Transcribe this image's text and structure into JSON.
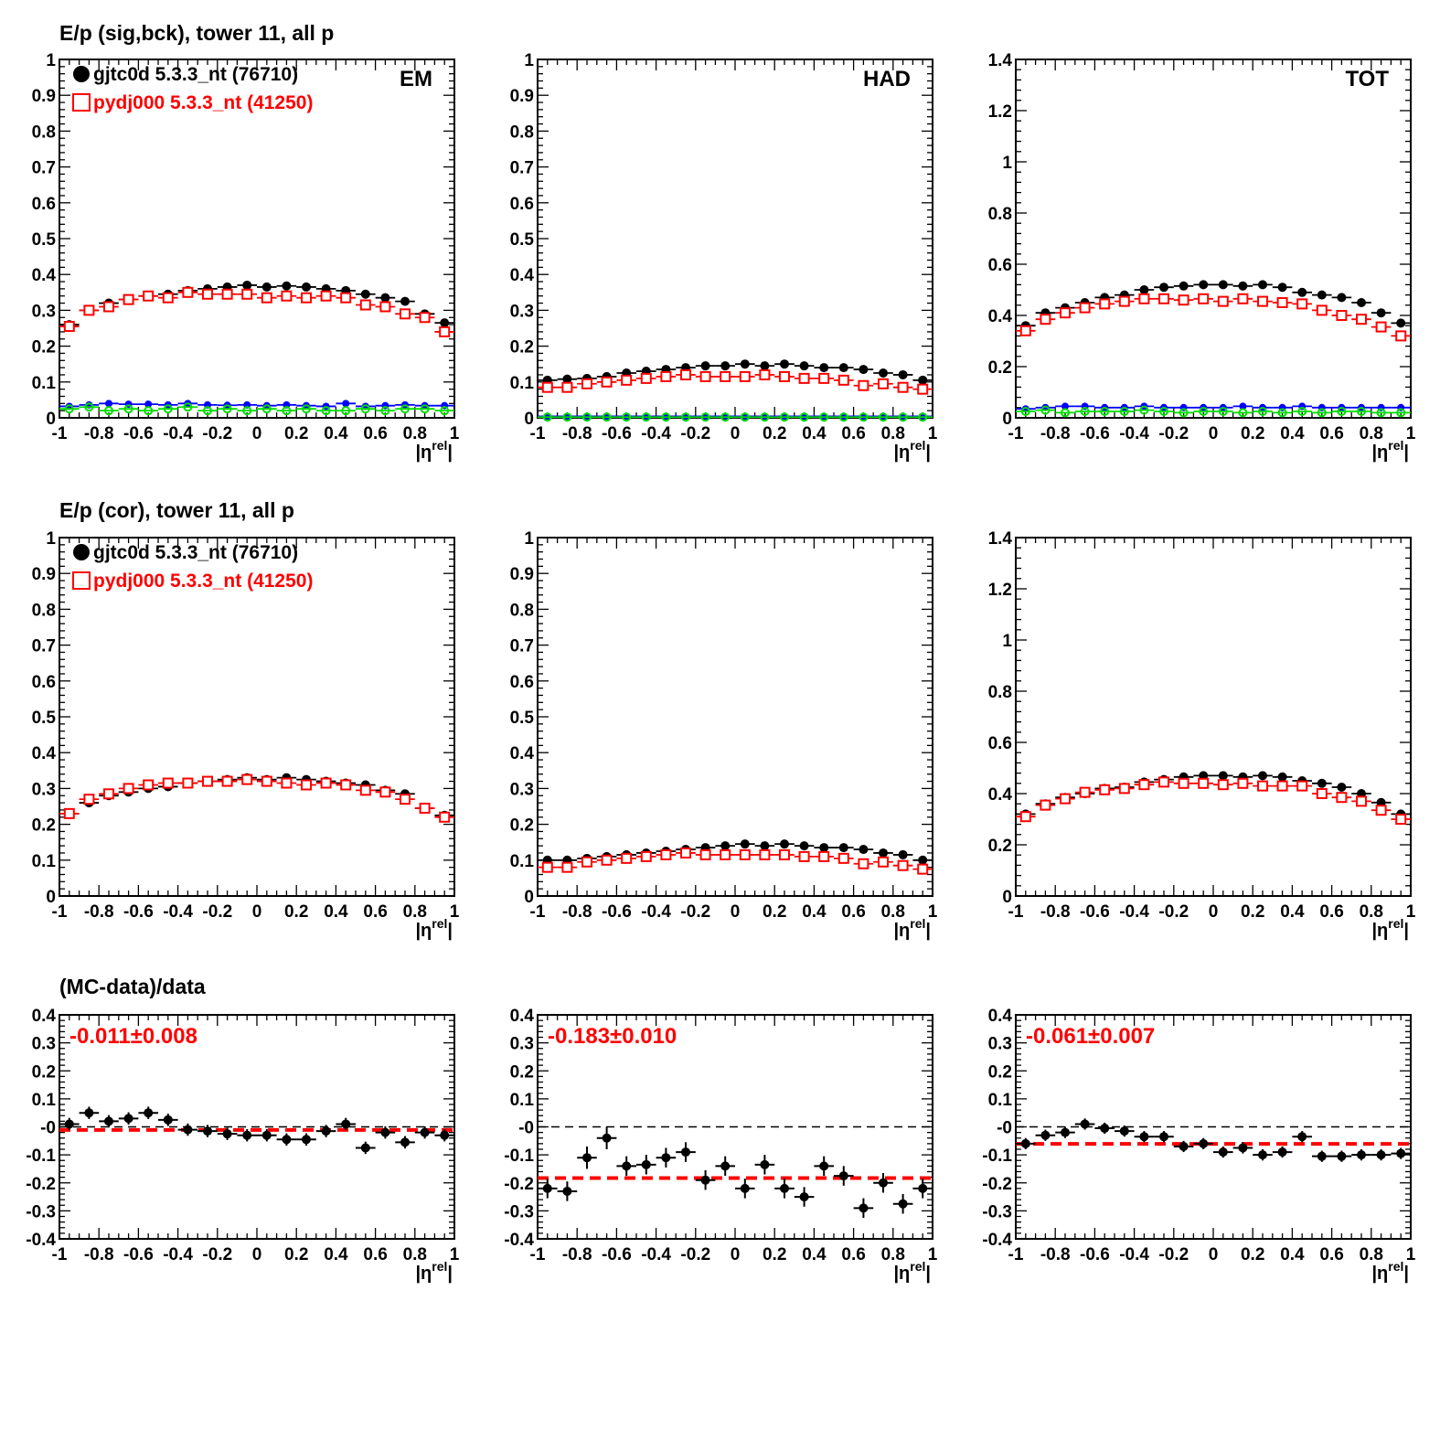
{
  "figure": {
    "row_titles": [
      "E/p (sig,bck), tower 11, all p",
      "E/p (cor), tower 11, all p",
      "(MC-data)/data"
    ],
    "x_axis_label": "|ηrel|",
    "x_tick_labels": [
      "-1",
      "-0.8",
      "-0.6",
      "-0.4",
      "-0.2",
      "0",
      "0.2",
      "0.4",
      "0.6",
      "0.8",
      "1"
    ],
    "legend": {
      "data": "gjtc0d 5.3.3_nt (76710)",
      "mc": "pydj000 5.3.3_nt (41250)"
    },
    "colors": {
      "data": "#000000",
      "mc": "#ff0000",
      "bck_data": "#0000ff",
      "bck_mc": "#00dd00",
      "fit_line": "#ff0000",
      "zero_line": "#000000"
    }
  },
  "chart_data": [
    {
      "id": "em_sigbck",
      "type": "scatter",
      "panel_label": "EM",
      "xlim": [
        -1,
        1
      ],
      "ylim": [
        0,
        1
      ],
      "yticks": [
        "0",
        "0.1",
        "0.2",
        "0.3",
        "0.4",
        "0.5",
        "0.6",
        "0.7",
        "0.8",
        "0.9",
        "1"
      ],
      "x": [
        -0.95,
        -0.85,
        -0.75,
        -0.65,
        -0.55,
        -0.45,
        -0.35,
        -0.25,
        -0.15,
        -0.05,
        0.05,
        0.15,
        0.25,
        0.35,
        0.45,
        0.55,
        0.65,
        0.75,
        0.85,
        0.95
      ],
      "series": [
        {
          "name": "gjtc0d 5.3.3_nt (76710)",
          "role": "data",
          "values": [
            0.26,
            0.3,
            0.32,
            0.33,
            0.34,
            0.345,
            0.355,
            0.36,
            0.365,
            0.37,
            0.365,
            0.368,
            0.365,
            0.36,
            0.355,
            0.345,
            0.335,
            0.325,
            0.29,
            0.265
          ]
        },
        {
          "name": "pydj000 5.3.3_nt (41250)",
          "role": "mc",
          "values": [
            0.255,
            0.3,
            0.31,
            0.33,
            0.34,
            0.335,
            0.35,
            0.345,
            0.345,
            0.345,
            0.335,
            0.34,
            0.335,
            0.34,
            0.335,
            0.315,
            0.31,
            0.29,
            0.28,
            0.24
          ]
        },
        {
          "role": "bck_data",
          "values": [
            0.032,
            0.036,
            0.04,
            0.038,
            0.038,
            0.036,
            0.04,
            0.036,
            0.035,
            0.036,
            0.034,
            0.036,
            0.034,
            0.032,
            0.04,
            0.032,
            0.034,
            0.036,
            0.034,
            0.034
          ]
        },
        {
          "role": "bck_mc",
          "values": [
            0.025,
            0.03,
            0.02,
            0.025,
            0.02,
            0.025,
            0.03,
            0.02,
            0.025,
            0.02,
            0.025,
            0.02,
            0.025,
            0.02,
            0.02,
            0.025,
            0.02,
            0.025,
            0.025,
            0.02
          ]
        }
      ]
    },
    {
      "id": "had_sigbck",
      "type": "scatter",
      "panel_label": "HAD",
      "xlim": [
        -1,
        1
      ],
      "ylim": [
        0,
        1
      ],
      "yticks": [
        "0",
        "0.1",
        "0.2",
        "0.3",
        "0.4",
        "0.5",
        "0.6",
        "0.7",
        "0.8",
        "0.9",
        "1"
      ],
      "x": [
        -0.95,
        -0.85,
        -0.75,
        -0.65,
        -0.55,
        -0.45,
        -0.35,
        -0.25,
        -0.15,
        -0.05,
        0.05,
        0.15,
        0.25,
        0.35,
        0.45,
        0.55,
        0.65,
        0.75,
        0.85,
        0.95
      ],
      "series": [
        {
          "name": "gjtc0d 5.3.3_nt (76710)",
          "role": "data",
          "values": [
            0.105,
            0.108,
            0.11,
            0.115,
            0.125,
            0.13,
            0.135,
            0.14,
            0.145,
            0.145,
            0.15,
            0.145,
            0.15,
            0.145,
            0.14,
            0.14,
            0.135,
            0.125,
            0.12,
            0.105
          ]
        },
        {
          "name": "pydj000 5.3.3_nt (41250)",
          "role": "mc",
          "values": [
            0.085,
            0.085,
            0.095,
            0.1,
            0.105,
            0.11,
            0.115,
            0.12,
            0.115,
            0.115,
            0.115,
            0.12,
            0.115,
            0.11,
            0.11,
            0.105,
            0.09,
            0.095,
            0.085,
            0.08
          ]
        },
        {
          "role": "bck_data",
          "values": [
            0.004,
            0.004,
            0.004,
            0.004,
            0.004,
            0.004,
            0.004,
            0.004,
            0.004,
            0.004,
            0.004,
            0.004,
            0.004,
            0.004,
            0.004,
            0.004,
            0.004,
            0.004,
            0.004,
            0.004
          ]
        },
        {
          "role": "bck_mc",
          "values": [
            0.002,
            0.002,
            0.002,
            0.002,
            0.002,
            0.002,
            0.002,
            0.002,
            0.002,
            0.002,
            0.002,
            0.002,
            0.002,
            0.002,
            0.002,
            0.002,
            0.002,
            0.002,
            0.002,
            0.002
          ]
        }
      ]
    },
    {
      "id": "tot_sigbck",
      "type": "scatter",
      "panel_label": "TOT",
      "xlim": [
        -1,
        1
      ],
      "ylim": [
        0,
        1.4
      ],
      "yticks": [
        "0",
        "0.2",
        "0.4",
        "0.6",
        "0.8",
        "1",
        "1.2",
        "1.4"
      ],
      "x": [
        -0.95,
        -0.85,
        -0.75,
        -0.65,
        -0.55,
        -0.45,
        -0.35,
        -0.25,
        -0.15,
        -0.05,
        0.05,
        0.15,
        0.25,
        0.35,
        0.45,
        0.55,
        0.65,
        0.75,
        0.85,
        0.95
      ],
      "series": [
        {
          "name": "gjtc0d 5.3.3_nt (76710)",
          "role": "data",
          "values": [
            0.36,
            0.41,
            0.43,
            0.45,
            0.47,
            0.48,
            0.5,
            0.51,
            0.515,
            0.52,
            0.52,
            0.515,
            0.52,
            0.51,
            0.49,
            0.48,
            0.47,
            0.45,
            0.41,
            0.37
          ]
        },
        {
          "name": "pydj000 5.3.3_nt (41250)",
          "role": "mc",
          "values": [
            0.34,
            0.385,
            0.41,
            0.43,
            0.445,
            0.455,
            0.465,
            0.465,
            0.46,
            0.465,
            0.455,
            0.465,
            0.455,
            0.45,
            0.445,
            0.42,
            0.4,
            0.385,
            0.355,
            0.32
          ]
        },
        {
          "role": "bck_data",
          "values": [
            0.035,
            0.04,
            0.045,
            0.045,
            0.04,
            0.04,
            0.045,
            0.04,
            0.04,
            0.04,
            0.04,
            0.045,
            0.04,
            0.04,
            0.045,
            0.04,
            0.04,
            0.04,
            0.04,
            0.04
          ]
        },
        {
          "role": "bck_mc",
          "values": [
            0.025,
            0.03,
            0.02,
            0.025,
            0.025,
            0.025,
            0.03,
            0.025,
            0.02,
            0.025,
            0.025,
            0.02,
            0.025,
            0.02,
            0.025,
            0.02,
            0.025,
            0.025,
            0.02,
            0.02
          ]
        }
      ]
    },
    {
      "id": "em_cor",
      "type": "scatter",
      "xlim": [
        -1,
        1
      ],
      "ylim": [
        0,
        1
      ],
      "yticks": [
        "0",
        "0.1",
        "0.2",
        "0.3",
        "0.4",
        "0.5",
        "0.6",
        "0.7",
        "0.8",
        "0.9",
        "1"
      ],
      "x": [
        -0.95,
        -0.85,
        -0.75,
        -0.65,
        -0.55,
        -0.45,
        -0.35,
        -0.25,
        -0.15,
        -0.05,
        0.05,
        0.15,
        0.25,
        0.35,
        0.45,
        0.55,
        0.65,
        0.75,
        0.85,
        0.95
      ],
      "series": [
        {
          "name": "gjtc0d 5.3.3_nt (76710)",
          "role": "data",
          "values": [
            0.23,
            0.26,
            0.28,
            0.29,
            0.3,
            0.305,
            0.315,
            0.32,
            0.325,
            0.33,
            0.325,
            0.33,
            0.325,
            0.32,
            0.315,
            0.31,
            0.295,
            0.285,
            0.245,
            0.225
          ]
        },
        {
          "name": "pydj000 5.3.3_nt (41250)",
          "role": "mc",
          "values": [
            0.23,
            0.27,
            0.285,
            0.3,
            0.31,
            0.315,
            0.315,
            0.32,
            0.32,
            0.325,
            0.32,
            0.315,
            0.31,
            0.315,
            0.31,
            0.295,
            0.29,
            0.27,
            0.245,
            0.22
          ]
        }
      ]
    },
    {
      "id": "had_cor",
      "type": "scatter",
      "xlim": [
        -1,
        1
      ],
      "ylim": [
        0,
        1
      ],
      "yticks": [
        "0",
        "0.1",
        "0.2",
        "0.3",
        "0.4",
        "0.5",
        "0.6",
        "0.7",
        "0.8",
        "0.9",
        "1"
      ],
      "x": [
        -0.95,
        -0.85,
        -0.75,
        -0.65,
        -0.55,
        -0.45,
        -0.35,
        -0.25,
        -0.15,
        -0.05,
        0.05,
        0.15,
        0.25,
        0.35,
        0.45,
        0.55,
        0.65,
        0.75,
        0.85,
        0.95
      ],
      "series": [
        {
          "name": "gjtc0d 5.3.3_nt (76710)",
          "role": "data",
          "values": [
            0.1,
            0.1,
            0.105,
            0.11,
            0.115,
            0.12,
            0.125,
            0.13,
            0.135,
            0.14,
            0.145,
            0.14,
            0.145,
            0.14,
            0.135,
            0.135,
            0.13,
            0.12,
            0.115,
            0.1
          ]
        },
        {
          "name": "pydj000 5.3.3_nt (41250)",
          "role": "mc",
          "values": [
            0.08,
            0.08,
            0.095,
            0.1,
            0.105,
            0.11,
            0.115,
            0.12,
            0.115,
            0.115,
            0.115,
            0.115,
            0.115,
            0.11,
            0.11,
            0.105,
            0.09,
            0.095,
            0.085,
            0.075
          ]
        }
      ]
    },
    {
      "id": "tot_cor",
      "type": "scatter",
      "xlim": [
        -1,
        1
      ],
      "ylim": [
        0,
        1.4
      ],
      "yticks": [
        "0",
        "0.2",
        "0.4",
        "0.6",
        "0.8",
        "1",
        "1.2",
        "1.4"
      ],
      "x": [
        -0.95,
        -0.85,
        -0.75,
        -0.65,
        -0.55,
        -0.45,
        -0.35,
        -0.25,
        -0.15,
        -0.05,
        0.05,
        0.15,
        0.25,
        0.35,
        0.45,
        0.55,
        0.65,
        0.75,
        0.85,
        0.95
      ],
      "series": [
        {
          "name": "gjtc0d 5.3.3_nt (76710)",
          "role": "data",
          "values": [
            0.32,
            0.36,
            0.385,
            0.4,
            0.42,
            0.425,
            0.445,
            0.455,
            0.465,
            0.47,
            0.47,
            0.465,
            0.47,
            0.465,
            0.45,
            0.44,
            0.425,
            0.4,
            0.365,
            0.32
          ]
        },
        {
          "name": "pydj000 5.3.3_nt (41250)",
          "role": "mc",
          "values": [
            0.31,
            0.355,
            0.38,
            0.405,
            0.415,
            0.42,
            0.435,
            0.445,
            0.44,
            0.44,
            0.435,
            0.44,
            0.43,
            0.43,
            0.43,
            0.4,
            0.385,
            0.37,
            0.335,
            0.3
          ]
        }
      ]
    },
    {
      "id": "em_ratio",
      "type": "scatter",
      "xlim": [
        -1,
        1
      ],
      "ylim": [
        -0.4,
        0.4
      ],
      "yticks": [
        "-0.4",
        "-0.3",
        "-0.2",
        "-0.1",
        "-0",
        "0.1",
        "0.2",
        "0.3",
        "0.4"
      ],
      "fit_text": "-0.011±0.008",
      "fit_value": -0.011,
      "x": [
        -0.95,
        -0.85,
        -0.75,
        -0.65,
        -0.55,
        -0.45,
        -0.35,
        -0.25,
        -0.15,
        -0.05,
        0.05,
        0.15,
        0.25,
        0.35,
        0.45,
        0.55,
        0.65,
        0.75,
        0.85,
        0.95
      ],
      "series": [
        {
          "role": "ratio",
          "values": [
            0.01,
            0.05,
            0.02,
            0.03,
            0.05,
            0.025,
            -0.01,
            -0.015,
            -0.025,
            -0.03,
            -0.03,
            -0.045,
            -0.045,
            -0.015,
            0.01,
            -0.075,
            -0.02,
            -0.055,
            -0.02,
            -0.03
          ],
          "errors": [
            0.022,
            0.022,
            0.022,
            0.022,
            0.022,
            0.022,
            0.022,
            0.022,
            0.022,
            0.022,
            0.022,
            0.022,
            0.022,
            0.022,
            0.022,
            0.022,
            0.022,
            0.022,
            0.022,
            0.022
          ]
        }
      ]
    },
    {
      "id": "had_ratio",
      "type": "scatter",
      "xlim": [
        -1,
        1
      ],
      "ylim": [
        -0.4,
        0.4
      ],
      "yticks": [
        "-0.4",
        "-0.3",
        "-0.2",
        "-0.1",
        "-0",
        "0.1",
        "0.2",
        "0.3",
        "0.4"
      ],
      "fit_text": "-0.183±0.010",
      "fit_value": -0.183,
      "x": [
        -0.95,
        -0.85,
        -0.75,
        -0.65,
        -0.55,
        -0.45,
        -0.35,
        -0.25,
        -0.15,
        -0.05,
        0.05,
        0.15,
        0.25,
        0.35,
        0.45,
        0.55,
        0.65,
        0.75,
        0.85,
        0.95
      ],
      "series": [
        {
          "role": "ratio",
          "values": [
            -0.22,
            -0.23,
            -0.11,
            -0.04,
            -0.14,
            -0.135,
            -0.11,
            -0.09,
            -0.19,
            -0.14,
            -0.22,
            -0.135,
            -0.22,
            -0.25,
            -0.14,
            -0.175,
            -0.29,
            -0.2,
            -0.275,
            -0.22
          ],
          "errors": [
            0.035,
            0.035,
            0.04,
            0.04,
            0.035,
            0.035,
            0.035,
            0.035,
            0.035,
            0.035,
            0.035,
            0.035,
            0.035,
            0.035,
            0.035,
            0.035,
            0.035,
            0.035,
            0.035,
            0.035
          ]
        }
      ]
    },
    {
      "id": "tot_ratio",
      "type": "scatter",
      "xlim": [
        -1,
        1
      ],
      "ylim": [
        -0.4,
        0.4
      ],
      "yticks": [
        "-0.4",
        "-0.3",
        "-0.2",
        "-0.1",
        "-0",
        "0.1",
        "0.2",
        "0.3",
        "0.4"
      ],
      "fit_text": "-0.061±0.007",
      "fit_value": -0.061,
      "x": [
        -0.95,
        -0.85,
        -0.75,
        -0.65,
        -0.55,
        -0.45,
        -0.35,
        -0.25,
        -0.15,
        -0.05,
        0.05,
        0.15,
        0.25,
        0.35,
        0.45,
        0.55,
        0.65,
        0.75,
        0.85,
        0.95
      ],
      "series": [
        {
          "role": "ratio",
          "values": [
            -0.06,
            -0.03,
            -0.02,
            0.01,
            -0.005,
            -0.015,
            -0.035,
            -0.035,
            -0.07,
            -0.06,
            -0.09,
            -0.075,
            -0.1,
            -0.09,
            -0.035,
            -0.105,
            -0.105,
            -0.1,
            -0.1,
            -0.095
          ],
          "errors": [
            0.02,
            0.02,
            0.02,
            0.02,
            0.02,
            0.02,
            0.02,
            0.02,
            0.02,
            0.02,
            0.02,
            0.02,
            0.02,
            0.02,
            0.02,
            0.02,
            0.02,
            0.02,
            0.02,
            0.02
          ]
        }
      ]
    }
  ]
}
